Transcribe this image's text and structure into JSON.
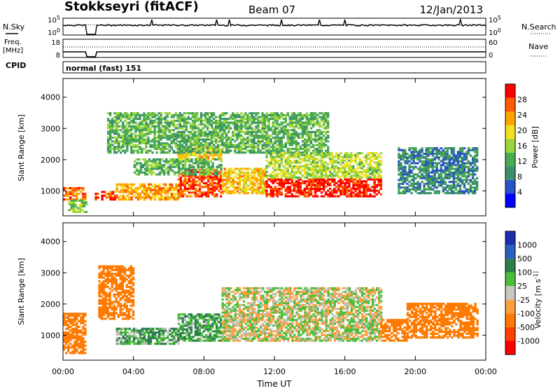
{
  "header": {
    "station": "Stokkseyri (fitACF)",
    "beam": "Beam 07",
    "date": "12/Jan/2013"
  },
  "strip_panels": {
    "nsky_label": "N.Sky",
    "nsearch_label": "N.Search",
    "freq_label_line1": "Freq.",
    "freq_label_line2": "[MHz]",
    "nave_label": "Nave",
    "cpid_label": "CPID",
    "cpid_value": "normal (fast) 151",
    "noise_ticks_left": [
      "10^5",
      "10^0"
    ],
    "noise_ticks_right": [
      "10^5",
      "10^0"
    ],
    "freq_ticks_left": [
      "18",
      "8"
    ],
    "nave_ticks_right": [
      "60",
      "0"
    ]
  },
  "x_axis": {
    "label": "Time UT",
    "ticks": [
      "00:00",
      "04:00",
      "08:00",
      "12:00",
      "16:00",
      "20:00",
      "00:00"
    ]
  },
  "colors": {
    "power_scale": [
      "#0000ff",
      "#2a52c8",
      "#3b8f6a",
      "#4aab55",
      "#9ad63a",
      "#f0e020",
      "#ffa500",
      "#ff5a00",
      "#ff0000"
    ],
    "velocity_scale": [
      "#1a2fb0",
      "#2a5fc0",
      "#2e7d4f",
      "#4bbf3a",
      "#c8c8c0",
      "#ffa040",
      "#ff7a00",
      "#ff4000",
      "#ff0000"
    ],
    "ground_scatter": "#c0c0b8"
  },
  "chart_data": [
    {
      "type": "heatmap",
      "title": "",
      "xlabel": "",
      "ylabel": "Slant Range [km]",
      "xlim": [
        0,
        24
      ],
      "ylim": [
        200,
        4600
      ],
      "yticks": [
        "1000",
        "2000",
        "3000",
        "4000"
      ],
      "colorbar": {
        "label": "Power [dB]",
        "ticks": [
          "4",
          "8",
          "12",
          "16",
          "20",
          "24",
          "28"
        ],
        "range": [
          0,
          30
        ]
      },
      "regions": [
        {
          "t0": 0.0,
          "t1": 1.3,
          "r0": 700,
          "r1": 1100,
          "value": 24
        },
        {
          "t0": 0.3,
          "t1": 1.3,
          "r0": 300,
          "r1": 700,
          "value": 14
        },
        {
          "t0": 1.8,
          "t1": 3.0,
          "r0": 700,
          "r1": 1000,
          "value": 26
        },
        {
          "t0": 3.0,
          "t1": 6.5,
          "r0": 700,
          "r1": 1200,
          "value": 22
        },
        {
          "t0": 6.5,
          "t1": 9.0,
          "r0": 800,
          "r1": 1700,
          "value": 26
        },
        {
          "t0": 9.0,
          "t1": 11.5,
          "r0": 900,
          "r1": 1700,
          "value": 20
        },
        {
          "t0": 11.5,
          "t1": 18.0,
          "r0": 800,
          "r1": 1400,
          "value": 28
        },
        {
          "t0": 11.5,
          "t1": 18.0,
          "r0": 1400,
          "r1": 2200,
          "value": 16
        },
        {
          "t0": 6.5,
          "t1": 9.0,
          "r0": 2000,
          "r1": 2400,
          "value": 20
        },
        {
          "t0": 4.0,
          "t1": 9.0,
          "r0": 1500,
          "r1": 2000,
          "value": 12
        },
        {
          "t0": 19.0,
          "t1": 23.5,
          "r0": 900,
          "r1": 2400,
          "value": 8
        },
        {
          "t0": 2.5,
          "t1": 15.0,
          "r0": 2200,
          "r1": 3500,
          "value": 12
        }
      ]
    },
    {
      "type": "heatmap",
      "title": "",
      "xlabel": "Time UT",
      "ylabel": "Slant Range [km]",
      "xlim": [
        0,
        24
      ],
      "ylim": [
        200,
        4600
      ],
      "yticks": [
        "1000",
        "2000",
        "3000",
        "4000"
      ],
      "colorbar": {
        "label": "Velocity [m s^-1]",
        "ticks": [
          "1000",
          "500",
          "100",
          "25",
          "-25",
          "-100",
          "-500",
          "-1000"
        ]
      },
      "regions": [
        {
          "t0": 0.0,
          "t1": 1.3,
          "r0": 400,
          "r1": 1700,
          "value": -300
        },
        {
          "t0": 2.0,
          "t1": 4.0,
          "r0": 1500,
          "r1": 3200,
          "value": -300
        },
        {
          "t0": 3.0,
          "t1": 6.5,
          "r0": 700,
          "r1": 1200,
          "value": 80
        },
        {
          "t0": 6.5,
          "t1": 9.0,
          "r0": 800,
          "r1": 1700,
          "value": 100
        },
        {
          "t0": 9.0,
          "t1": 18.0,
          "r0": 800,
          "r1": 2500,
          "value": 0
        },
        {
          "t0": 18.0,
          "t1": 19.5,
          "r0": 800,
          "r1": 1500,
          "value": -400
        },
        {
          "t0": 19.5,
          "t1": 23.5,
          "r0": 900,
          "r1": 2000,
          "value": -300
        }
      ]
    }
  ]
}
